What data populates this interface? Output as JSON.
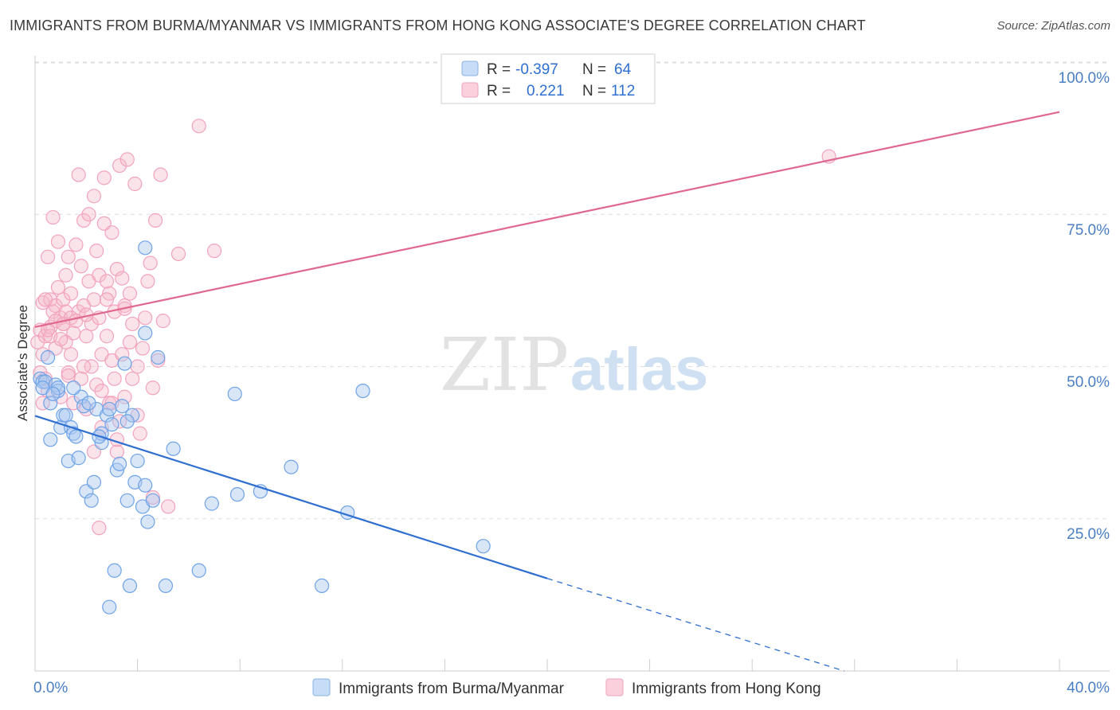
{
  "header": {
    "title": "IMMIGRANTS FROM BURMA/MYANMAR VS IMMIGRANTS FROM HONG KONG ASSOCIATE'S DEGREE CORRELATION CHART",
    "source": "Source: ZipAtlas.com"
  },
  "watermark": {
    "zip": "ZIP",
    "atlas": "atlas"
  },
  "legend": {
    "rows": [
      {
        "r_label": "R =",
        "r_value": "-0.397",
        "n_label": "N =",
        "n_value": "64",
        "color": "#a9c8f0"
      },
      {
        "r_label": "R =",
        "r_value": "0.221",
        "n_label": "N =",
        "n_value": "112",
        "color": "#f6b8cb"
      }
    ]
  },
  "bottom_legend": {
    "items": [
      {
        "label": "Immigrants from Burma/Myanmar",
        "color": "#a9c8f0"
      },
      {
        "label": "Immigrants from Hong Kong",
        "color": "#f6b8cb"
      }
    ]
  },
  "chart_data": {
    "type": "scatter",
    "title": "IMMIGRANTS FROM BURMA/MYANMAR VS IMMIGRANTS FROM HONG KONG ASSOCIATE'S DEGREE CORRELATION CHART",
    "xlabel": "",
    "ylabel": "Associate's Degree",
    "xlim": [
      0,
      40
    ],
    "ylim": [
      0,
      100
    ],
    "x_tick_labels": [
      "0.0%",
      "40.0%"
    ],
    "y_tick_labels": [
      "100.0%",
      "75.0%",
      "50.0%",
      "25.0%"
    ],
    "y_ticks": [
      100,
      75,
      50,
      25
    ],
    "series": [
      {
        "name": "Immigrants from Burma/Myanmar",
        "color": "#6fa3e8",
        "line_color": "#2f6fd0",
        "r": -0.397,
        "n": 64,
        "trend": {
          "x0": 0,
          "y0": 41.9,
          "x1": 20,
          "y1": 15.2,
          "dash_to_x": 31.6,
          "dash_to_y": 0
        },
        "points": [
          [
            0.2,
            48
          ],
          [
            0.3,
            47.5
          ],
          [
            0.4,
            47.5
          ],
          [
            0.5,
            51.5
          ],
          [
            0.6,
            44
          ],
          [
            0.6,
            38
          ],
          [
            0.8,
            47
          ],
          [
            0.9,
            46
          ],
          [
            0.9,
            46.5
          ],
          [
            1.0,
            40
          ],
          [
            1.1,
            42
          ],
          [
            1.2,
            42
          ],
          [
            1.3,
            34.5
          ],
          [
            1.4,
            40
          ],
          [
            1.5,
            39
          ],
          [
            1.6,
            38.5
          ],
          [
            1.7,
            35
          ],
          [
            1.8,
            45
          ],
          [
            1.9,
            43.5
          ],
          [
            2.0,
            29.5
          ],
          [
            2.2,
            28
          ],
          [
            2.3,
            31
          ],
          [
            2.4,
            43
          ],
          [
            2.6,
            37.5
          ],
          [
            2.6,
            39
          ],
          [
            2.8,
            42
          ],
          [
            2.9,
            43
          ],
          [
            3.1,
            16.5
          ],
          [
            3.2,
            33
          ],
          [
            3.3,
            34
          ],
          [
            3.4,
            43.5
          ],
          [
            3.5,
            50.5
          ],
          [
            3.6,
            28
          ],
          [
            3.7,
            14
          ],
          [
            3.8,
            42
          ],
          [
            3.9,
            31
          ],
          [
            4.0,
            34.5
          ],
          [
            4.2,
            27
          ],
          [
            4.3,
            30.5
          ],
          [
            4.4,
            24.5
          ],
          [
            4.6,
            28
          ],
          [
            4.8,
            51.5
          ],
          [
            5.1,
            14
          ],
          [
            5.4,
            36.5
          ],
          [
            6.4,
            16.5
          ],
          [
            6.9,
            27.5
          ],
          [
            7.8,
            45.5
          ],
          [
            7.9,
            29
          ],
          [
            8.8,
            29.5
          ],
          [
            10.0,
            33.5
          ],
          [
            11.2,
            14
          ],
          [
            12.2,
            26
          ],
          [
            12.8,
            46
          ],
          [
            17.5,
            20.5
          ],
          [
            4.3,
            55.5
          ],
          [
            2.9,
            10.5
          ],
          [
            0.3,
            46.5
          ],
          [
            0.7,
            45.5
          ],
          [
            1.5,
            46.5
          ],
          [
            2.1,
            44
          ],
          [
            3.0,
            40.5
          ],
          [
            3.6,
            41
          ],
          [
            4.3,
            69.5
          ],
          [
            2.5,
            38.5
          ]
        ]
      },
      {
        "name": "Immigrants from Hong Kong",
        "color": "#f2a3bd",
        "line_color": "#e0688f",
        "r": 0.221,
        "n": 112,
        "trend": {
          "x0": 0,
          "y0": 56.5,
          "x1": 40,
          "y1": 91.8
        },
        "points": [
          [
            0.1,
            54
          ],
          [
            0.2,
            56
          ],
          [
            0.2,
            49
          ],
          [
            0.3,
            60.5
          ],
          [
            0.3,
            52
          ],
          [
            0.4,
            55
          ],
          [
            0.4,
            48
          ],
          [
            0.5,
            68
          ],
          [
            0.5,
            46
          ],
          [
            0.6,
            61
          ],
          [
            0.6,
            56.5
          ],
          [
            0.7,
            59
          ],
          [
            0.7,
            74.5
          ],
          [
            0.8,
            53
          ],
          [
            0.8,
            60
          ],
          [
            0.9,
            63
          ],
          [
            0.9,
            70.5
          ],
          [
            1.0,
            58
          ],
          [
            1.0,
            45
          ],
          [
            1.1,
            61
          ],
          [
            1.1,
            57
          ],
          [
            1.2,
            54
          ],
          [
            1.2,
            65
          ],
          [
            1.3,
            68
          ],
          [
            1.3,
            49
          ],
          [
            1.4,
            62
          ],
          [
            1.4,
            52
          ],
          [
            1.5,
            55.5
          ],
          [
            1.5,
            44
          ],
          [
            1.6,
            70
          ],
          [
            1.7,
            81.5
          ],
          [
            1.7,
            59
          ],
          [
            1.8,
            66.5
          ],
          [
            1.8,
            48
          ],
          [
            1.9,
            60
          ],
          [
            1.9,
            74
          ],
          [
            2.0,
            55
          ],
          [
            2.0,
            43
          ],
          [
            2.1,
            75
          ],
          [
            2.1,
            64
          ],
          [
            2.2,
            57
          ],
          [
            2.2,
            50
          ],
          [
            2.3,
            78
          ],
          [
            2.3,
            61
          ],
          [
            2.4,
            69
          ],
          [
            2.4,
            47
          ],
          [
            2.5,
            58
          ],
          [
            2.5,
            65
          ],
          [
            2.6,
            52
          ],
          [
            2.6,
            40
          ],
          [
            2.7,
            81
          ],
          [
            2.7,
            73.5
          ],
          [
            2.8,
            64
          ],
          [
            2.8,
            55
          ],
          [
            2.9,
            62
          ],
          [
            2.9,
            44
          ],
          [
            3.0,
            72
          ],
          [
            3.0,
            51
          ],
          [
            3.1,
            59
          ],
          [
            3.1,
            48
          ],
          [
            3.2,
            66
          ],
          [
            3.2,
            36
          ],
          [
            3.3,
            83
          ],
          [
            3.3,
            41
          ],
          [
            3.4,
            64.5
          ],
          [
            3.4,
            52
          ],
          [
            3.5,
            60
          ],
          [
            3.5,
            45
          ],
          [
            3.6,
            84
          ],
          [
            3.7,
            62
          ],
          [
            3.8,
            57
          ],
          [
            3.9,
            80
          ],
          [
            4.0,
            50
          ],
          [
            4.0,
            42
          ],
          [
            4.1,
            39
          ],
          [
            4.2,
            53
          ],
          [
            4.3,
            58
          ],
          [
            4.4,
            64
          ],
          [
            4.5,
            67
          ],
          [
            4.6,
            46.5
          ],
          [
            4.7,
            74
          ],
          [
            4.8,
            51
          ],
          [
            4.9,
            81.5
          ],
          [
            5.0,
            57.5
          ],
          [
            5.2,
            27
          ],
          [
            5.6,
            68.5
          ],
          [
            6.4,
            89.5
          ],
          [
            7.0,
            69
          ],
          [
            31.0,
            84.5
          ],
          [
            1.3,
            48.5
          ],
          [
            2.3,
            36
          ],
          [
            2.5,
            23.5
          ],
          [
            3.0,
            44
          ],
          [
            3.7,
            54
          ],
          [
            4.6,
            28.5
          ],
          [
            0.4,
            61
          ],
          [
            0.6,
            55
          ],
          [
            0.8,
            57.5
          ],
          [
            1.0,
            54.5
          ],
          [
            1.2,
            59
          ],
          [
            1.4,
            58
          ],
          [
            1.6,
            57.5
          ],
          [
            2.0,
            58.5
          ],
          [
            2.8,
            61
          ],
          [
            3.5,
            59.5
          ],
          [
            3.8,
            48
          ],
          [
            1.1,
            57
          ],
          [
            0.5,
            56
          ],
          [
            1.9,
            50
          ],
          [
            2.6,
            46
          ],
          [
            3.2,
            38
          ],
          [
            0.3,
            44
          ]
        ]
      }
    ]
  }
}
